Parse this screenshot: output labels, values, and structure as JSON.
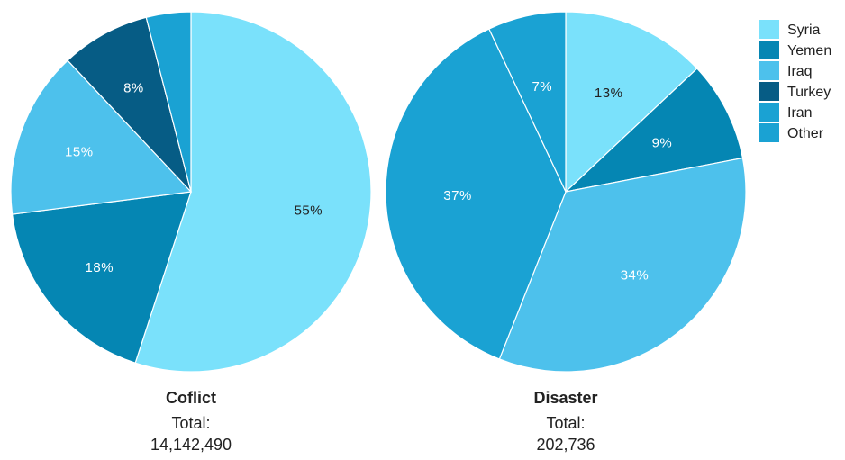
{
  "chart_data": [
    {
      "type": "pie",
      "title": "Coflict",
      "total_label": "Total:",
      "total_value": "14,142,490",
      "slices": [
        {
          "name": "Syria",
          "value": 55,
          "label": "55%"
        },
        {
          "name": "Yemen",
          "value": 18,
          "label": "18%"
        },
        {
          "name": "Iraq",
          "value": 15,
          "label": "15%"
        },
        {
          "name": "Turkey",
          "value": 8,
          "label": "8%"
        },
        {
          "name": "Iran",
          "value": 4,
          "label": ""
        }
      ]
    },
    {
      "type": "pie",
      "title": "Disaster",
      "total_label": "Total:",
      "total_value": "202,736",
      "slices": [
        {
          "name": "Syria",
          "value": 13,
          "label": "13%"
        },
        {
          "name": "Yemen",
          "value": 9,
          "label": "9%"
        },
        {
          "name": "Iraq",
          "value": 34,
          "label": "34%"
        },
        {
          "name": "Iran",
          "value": 37,
          "label": "37%"
        },
        {
          "name": "Other",
          "value": 7,
          "label": "7%"
        }
      ]
    }
  ],
  "legend": {
    "position": "top-right",
    "items": [
      {
        "name": "Syria",
        "color": "#7ae1fb"
      },
      {
        "name": "Yemen",
        "color": "#0586b3"
      },
      {
        "name": "Iraq",
        "color": "#4dc1ec"
      },
      {
        "name": "Turkey",
        "color": "#065c85"
      },
      {
        "name": "Iran",
        "color": "#1aa2d3"
      },
      {
        "name": "Other",
        "color": "#1aa2d3"
      }
    ]
  }
}
